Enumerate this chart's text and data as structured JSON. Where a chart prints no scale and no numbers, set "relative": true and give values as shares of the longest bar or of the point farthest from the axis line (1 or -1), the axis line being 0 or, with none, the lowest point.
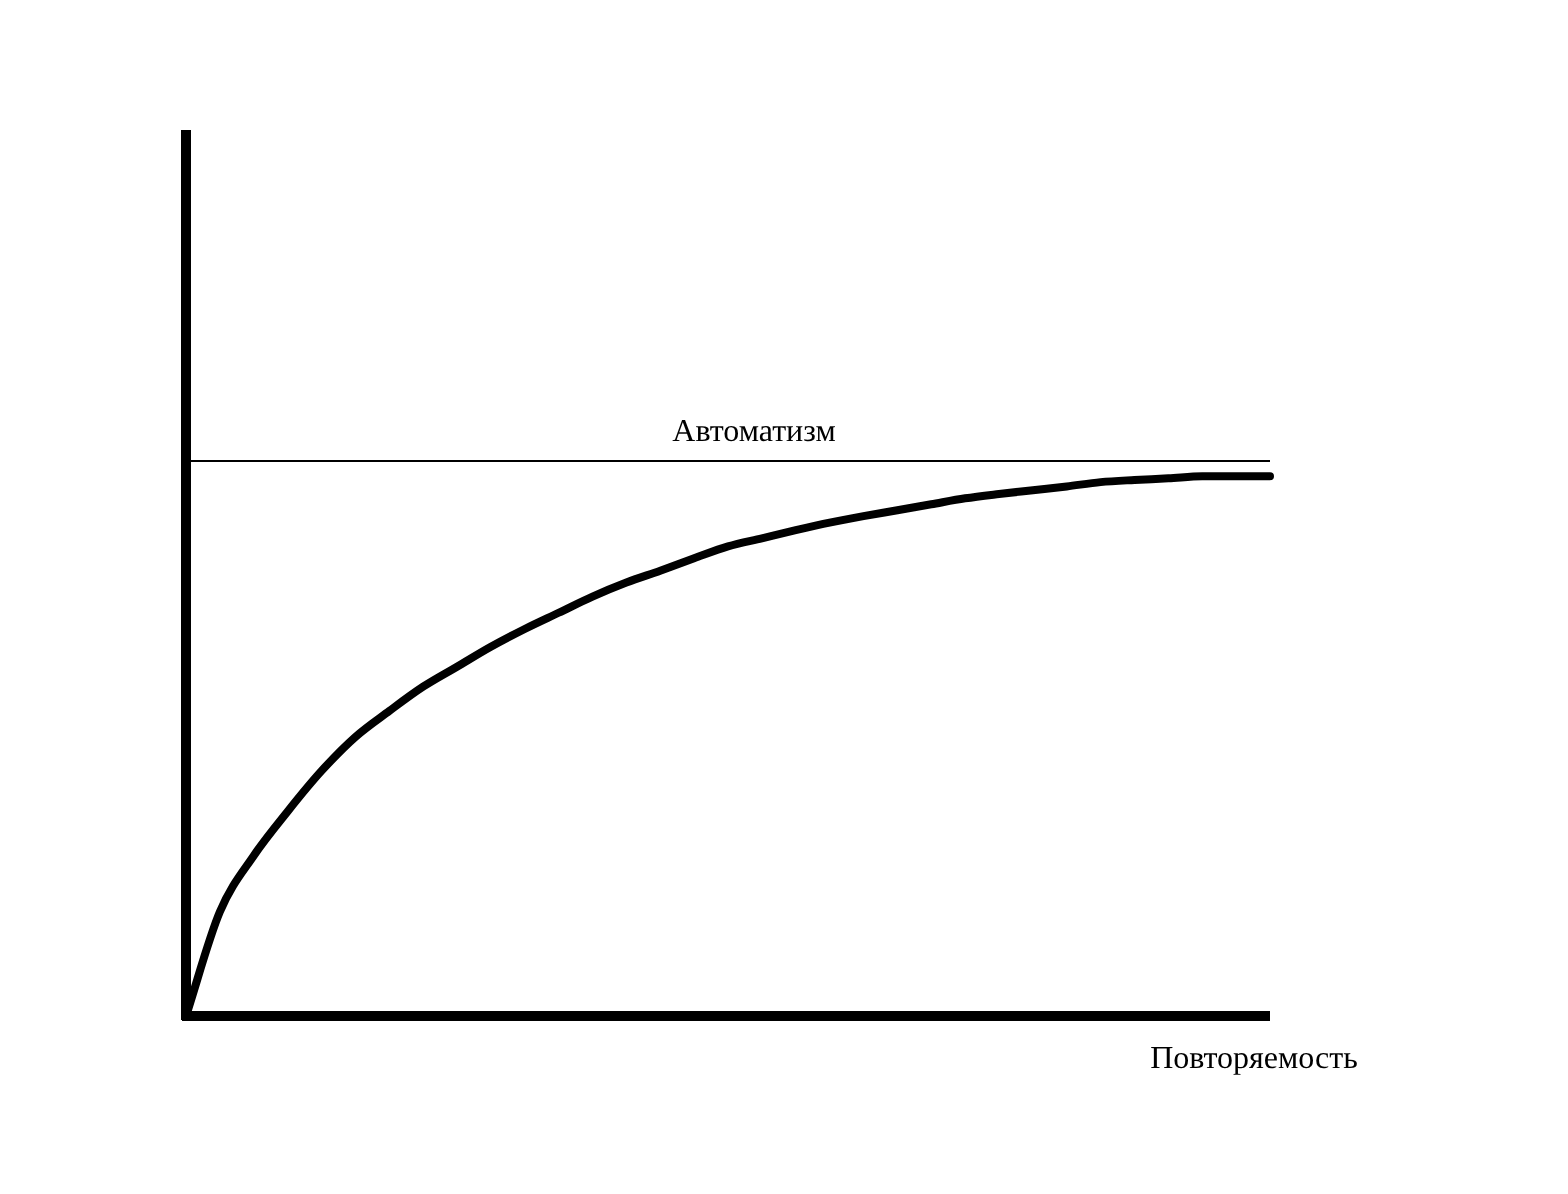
{
  "chart_data": {
    "type": "line",
    "relative": true,
    "xlabel": "Повторяемость",
    "legend": false,
    "marker": "none",
    "line_style": "solid",
    "categories": [
      null,
      null,
      null,
      null,
      null,
      null,
      null,
      null,
      null,
      null,
      null,
      null,
      null,
      null,
      null,
      null,
      null,
      null,
      null,
      null,
      null,
      null,
      null,
      null,
      null,
      null,
      null,
      null,
      null,
      null,
      null,
      null,
      null
    ],
    "series": [
      {
        "color": "#000000",
        "values": [
          0,
          0.193,
          0.297,
          0.379,
          0.454,
          0.517,
          0.565,
          0.61,
          0.647,
          0.684,
          0.717,
          0.747,
          0.777,
          0.803,
          0.825,
          0.848,
          0.87,
          0.885,
          0.9,
          0.914,
          0.926,
          0.937,
          0.948,
          0.959,
          0.967,
          0.974,
          0.981,
          0.989,
          0.993,
          0.996,
          1,
          1,
          1
        ]
      }
    ],
    "ref_lines": [
      {
        "axis": "y",
        "value": 1.03,
        "label": "Автоматизм",
        "color": "#000000",
        "line_style": "solid"
      }
    ]
  }
}
